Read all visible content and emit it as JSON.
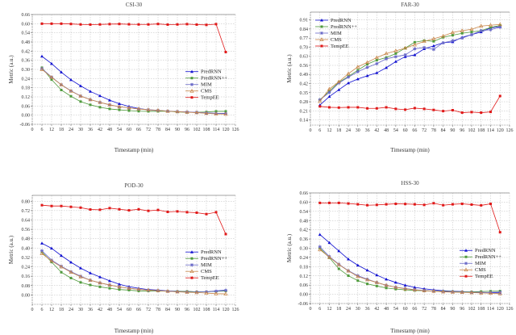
{
  "legend_colors": {
    "PredRNN": "#1010d0",
    "PredRNN++": "#4f9a3c",
    "MIM": "#6a6ac8",
    "CMS": "#c8874a",
    "TempEE": "#e01818"
  },
  "series_markers": {
    "PredRNN": "triangle",
    "PredRNN++": "square",
    "MIM": "star",
    "CMS": "triangle-open",
    "TempEE": "square"
  },
  "chart_data": [
    {
      "type": "line",
      "title": "CSI-30",
      "xlabel": "Timestamp (min)",
      "ylabel": "Metric (a.u.)",
      "xlim": [
        0,
        126
      ],
      "ylim": [
        -0.06,
        0.66
      ],
      "xticks": [
        0,
        6,
        12,
        18,
        24,
        30,
        36,
        42,
        48,
        54,
        60,
        66,
        72,
        78,
        84,
        90,
        96,
        102,
        108,
        114,
        120,
        126
      ],
      "yticks": [
        -0.06,
        0.0,
        0.06,
        0.12,
        0.18,
        0.24,
        0.3,
        0.36,
        0.42,
        0.48,
        0.54,
        0.6,
        0.66
      ],
      "grid": true,
      "legend_position": "right",
      "x": [
        6,
        12,
        18,
        24,
        30,
        36,
        42,
        48,
        54,
        60,
        66,
        72,
        78,
        84,
        90,
        96,
        102,
        108,
        114,
        120
      ],
      "series": [
        {
          "name": "PredRNN",
          "values": [
            0.386,
            0.338,
            0.282,
            0.232,
            0.192,
            0.156,
            0.127,
            0.098,
            0.075,
            0.057,
            0.044,
            0.035,
            0.03,
            0.026,
            0.023,
            0.021,
            0.017,
            0.014,
            0.012,
            0.012
          ]
        },
        {
          "name": "PredRNN++",
          "values": [
            0.311,
            0.233,
            0.165,
            0.124,
            0.089,
            0.068,
            0.052,
            0.041,
            0.035,
            0.03,
            0.026,
            0.025,
            0.025,
            0.026,
            0.021,
            0.019,
            0.019,
            0.021,
            0.025,
            0.025
          ]
        },
        {
          "name": "MIM",
          "values": [
            0.305,
            0.25,
            0.2,
            0.16,
            0.126,
            0.102,
            0.084,
            0.068,
            0.055,
            0.048,
            0.041,
            0.036,
            0.032,
            0.027,
            0.024,
            0.021,
            0.019,
            0.015,
            0.012,
            0.011
          ]
        },
        {
          "name": "CMS",
          "values": [
            0.3,
            0.248,
            0.199,
            0.158,
            0.125,
            0.102,
            0.084,
            0.068,
            0.055,
            0.048,
            0.041,
            0.035,
            0.032,
            0.026,
            0.023,
            0.019,
            0.017,
            0.012,
            0.008,
            0.007
          ]
        },
        {
          "name": "TempEE",
          "values": [
            0.6,
            0.6,
            0.6,
            0.598,
            0.595,
            0.594,
            0.595,
            0.597,
            0.598,
            0.596,
            0.595,
            0.595,
            0.598,
            0.594,
            0.595,
            0.597,
            0.594,
            0.592,
            0.597,
            0.414
          ]
        }
      ]
    },
    {
      "type": "line",
      "title": "FAR-30",
      "xlabel": "Timestamp (min)",
      "ylabel": "Metric (a.u.)",
      "xlim": [
        0,
        126
      ],
      "ylim": [
        0.1,
        0.97
      ],
      "xticks": [
        0,
        6,
        12,
        18,
        24,
        30,
        36,
        42,
        48,
        54,
        60,
        66,
        72,
        78,
        84,
        90,
        96,
        102,
        108,
        114,
        120,
        126
      ],
      "yticks": [
        0.14,
        0.21,
        0.28,
        0.35,
        0.42,
        0.49,
        0.56,
        0.63,
        0.7,
        0.77,
        0.84,
        0.91
      ],
      "grid": true,
      "legend_position": "top-left",
      "x": [
        6,
        12,
        18,
        24,
        30,
        36,
        42,
        48,
        54,
        60,
        66,
        72,
        78,
        84,
        90,
        96,
        102,
        108,
        114,
        120
      ],
      "series": [
        {
          "name": "PredRNN",
          "values": [
            0.254,
            0.32,
            0.372,
            0.424,
            0.455,
            0.48,
            0.502,
            0.542,
            0.589,
            0.627,
            0.641,
            0.687,
            0.71,
            0.734,
            0.741,
            0.776,
            0.797,
            0.817,
            0.848,
            0.859
          ]
        },
        {
          "name": "PredRNN++",
          "values": [
            0.295,
            0.362,
            0.43,
            0.475,
            0.523,
            0.569,
            0.6,
            0.62,
            0.651,
            0.693,
            0.738,
            0.751,
            0.745,
            0.776,
            0.792,
            0.807,
            0.817,
            0.827,
            0.852,
            0.867
          ]
        },
        {
          "name": "MIM",
          "values": [
            0.295,
            0.351,
            0.424,
            0.469,
            0.511,
            0.544,
            0.573,
            0.61,
            0.627,
            0.641,
            0.687,
            0.697,
            0.683,
            0.734,
            0.75,
            0.77,
            0.797,
            0.827,
            0.834,
            0.854
          ]
        },
        {
          "name": "CMS",
          "values": [
            0.283,
            0.378,
            0.434,
            0.496,
            0.548,
            0.583,
            0.62,
            0.651,
            0.672,
            0.693,
            0.718,
            0.745,
            0.765,
            0.786,
            0.813,
            0.827,
            0.838,
            0.863,
            0.869,
            0.875
          ]
        },
        {
          "name": "TempEE",
          "values": [
            0.244,
            0.237,
            0.235,
            0.237,
            0.237,
            0.229,
            0.229,
            0.237,
            0.225,
            0.219,
            0.231,
            0.225,
            0.217,
            0.208,
            0.215,
            0.196,
            0.2,
            0.196,
            0.202,
            0.324
          ]
        }
      ]
    },
    {
      "type": "line",
      "title": "POD-30",
      "xlabel": "Timestamp (min)",
      "ylabel": "Metric (a.u.)",
      "xlim": [
        0,
        126
      ],
      "ylim": [
        -0.08,
        0.85
      ],
      "xticks": [
        0,
        6,
        12,
        18,
        24,
        30,
        36,
        42,
        48,
        54,
        60,
        66,
        72,
        78,
        84,
        90,
        96,
        102,
        108,
        114,
        120,
        126
      ],
      "yticks": [
        0.0,
        0.08,
        0.16,
        0.24,
        0.32,
        0.4,
        0.48,
        0.56,
        0.64,
        0.72,
        0.8
      ],
      "grid": true,
      "legend_position": "right",
      "x": [
        6,
        12,
        18,
        24,
        30,
        36,
        42,
        48,
        54,
        60,
        66,
        72,
        78,
        84,
        90,
        96,
        102,
        108,
        114,
        120
      ],
      "series": [
        {
          "name": "PredRNN",
          "values": [
            0.441,
            0.398,
            0.336,
            0.279,
            0.229,
            0.187,
            0.153,
            0.121,
            0.091,
            0.071,
            0.057,
            0.046,
            0.041,
            0.034,
            0.032,
            0.03,
            0.027,
            0.027,
            0.034,
            0.041
          ]
        },
        {
          "name": "PredRNN++",
          "values": [
            0.366,
            0.281,
            0.194,
            0.144,
            0.107,
            0.085,
            0.069,
            0.057,
            0.046,
            0.041,
            0.034,
            0.034,
            0.034,
            0.032,
            0.03,
            0.03,
            0.027,
            0.027,
            0.03,
            0.034
          ]
        },
        {
          "name": "MIM",
          "values": [
            0.377,
            0.297,
            0.245,
            0.199,
            0.16,
            0.126,
            0.103,
            0.085,
            0.069,
            0.057,
            0.048,
            0.041,
            0.037,
            0.032,
            0.027,
            0.025,
            0.025,
            0.027,
            0.032,
            0.039
          ]
        },
        {
          "name": "CMS",
          "values": [
            0.354,
            0.29,
            0.24,
            0.194,
            0.155,
            0.126,
            0.103,
            0.085,
            0.069,
            0.057,
            0.048,
            0.041,
            0.037,
            0.032,
            0.027,
            0.023,
            0.021,
            0.016,
            0.011,
            0.009
          ]
        },
        {
          "name": "TempEE",
          "values": [
            0.766,
            0.759,
            0.759,
            0.752,
            0.745,
            0.729,
            0.727,
            0.741,
            0.731,
            0.722,
            0.731,
            0.718,
            0.725,
            0.709,
            0.713,
            0.706,
            0.702,
            0.69,
            0.706,
            0.519
          ]
        }
      ]
    },
    {
      "type": "line",
      "title": "HSS-30",
      "xlabel": "Timestamp (min)",
      "ylabel": "Metric (a.u.)",
      "xlim": [
        0,
        126
      ],
      "ylim": [
        -0.06,
        0.66
      ],
      "xticks": [
        0,
        6,
        12,
        18,
        24,
        30,
        36,
        42,
        48,
        54,
        60,
        66,
        72,
        78,
        84,
        90,
        96,
        102,
        108,
        114,
        120,
        126
      ],
      "yticks": [
        -0.06,
        0.0,
        0.06,
        0.12,
        0.18,
        0.24,
        0.3,
        0.36,
        0.42,
        0.48,
        0.54,
        0.6,
        0.66
      ],
      "grid": true,
      "legend_position": "right",
      "x": [
        6,
        12,
        18,
        24,
        30,
        36,
        42,
        48,
        54,
        60,
        66,
        72,
        78,
        84,
        90,
        96,
        102,
        108,
        114,
        120
      ],
      "series": [
        {
          "name": "PredRNN",
          "values": [
            0.389,
            0.336,
            0.282,
            0.229,
            0.189,
            0.157,
            0.125,
            0.098,
            0.077,
            0.059,
            0.045,
            0.036,
            0.029,
            0.023,
            0.02,
            0.018,
            0.014,
            0.013,
            0.011,
            0.009
          ]
        },
        {
          "name": "PredRNN++",
          "values": [
            0.3,
            0.238,
            0.166,
            0.121,
            0.089,
            0.068,
            0.054,
            0.041,
            0.034,
            0.029,
            0.025,
            0.023,
            0.021,
            0.02,
            0.018,
            0.016,
            0.016,
            0.018,
            0.02,
            0.021
          ]
        },
        {
          "name": "MIM",
          "values": [
            0.309,
            0.246,
            0.196,
            0.154,
            0.121,
            0.098,
            0.077,
            0.059,
            0.046,
            0.038,
            0.03,
            0.025,
            0.021,
            0.018,
            0.016,
            0.014,
            0.013,
            0.011,
            0.013,
            0.014
          ]
        },
        {
          "name": "CMS",
          "values": [
            0.291,
            0.241,
            0.193,
            0.152,
            0.116,
            0.095,
            0.077,
            0.059,
            0.046,
            0.036,
            0.029,
            0.023,
            0.02,
            0.016,
            0.014,
            0.013,
            0.011,
            0.009,
            0.007,
            0.004
          ]
        },
        {
          "name": "TempEE",
          "values": [
            0.595,
            0.595,
            0.595,
            0.591,
            0.586,
            0.58,
            0.582,
            0.586,
            0.589,
            0.588,
            0.586,
            0.582,
            0.593,
            0.58,
            0.586,
            0.589,
            0.584,
            0.579,
            0.589,
            0.404
          ]
        }
      ]
    }
  ]
}
